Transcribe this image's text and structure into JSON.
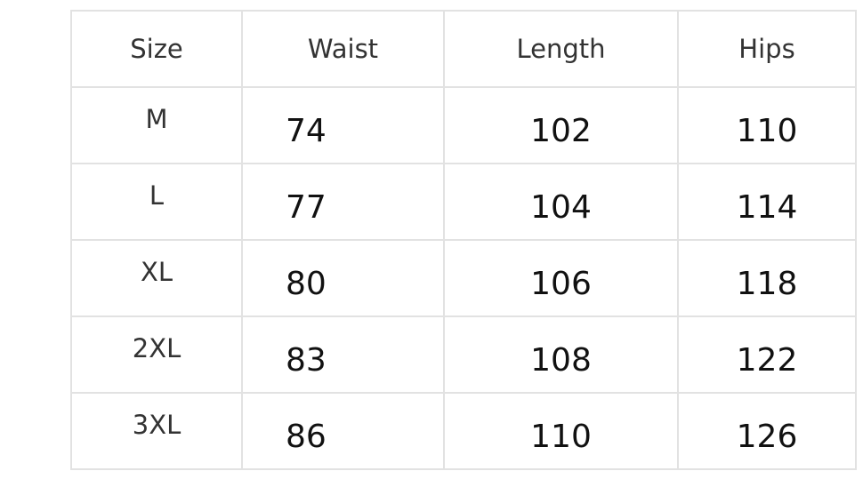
{
  "headers": [
    "Size",
    "Waist",
    "Length",
    "Hips"
  ],
  "rows": [
    [
      "M",
      "74",
      "102",
      "110"
    ],
    [
      "L",
      "77",
      "104",
      "114"
    ],
    [
      "XL",
      "80",
      "106",
      "118"
    ],
    [
      "2XL",
      "83",
      "108",
      "122"
    ],
    [
      "3XL",
      "86",
      "110",
      "126"
    ]
  ]
}
